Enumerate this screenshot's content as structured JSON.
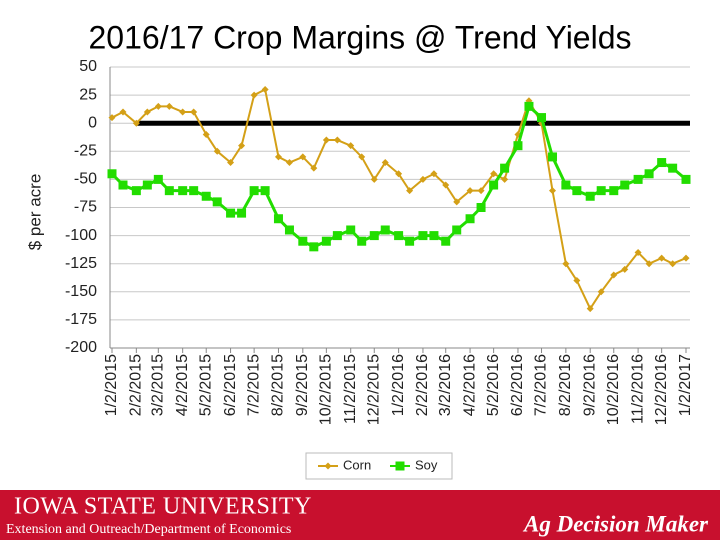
{
  "chart_data": {
    "type": "line",
    "title": "2016/17 Crop Margins @ Trend Yields",
    "y_label": "$ per acre",
    "x": [
      "1/2/2015",
      "1/16/2015",
      "2/2/2015",
      "2/16/2015",
      "3/2/2015",
      "3/16/2015",
      "4/2/2015",
      "4/16/2015",
      "5/2/2015",
      "5/16/2015",
      "6/2/2015",
      "6/16/2015",
      "7/2/2015",
      "7/16/2015",
      "8/2/2015",
      "8/16/2015",
      "9/2/2015",
      "9/16/2015",
      "10/2/2015",
      "10/16/2015",
      "11/2/2015",
      "11/16/2015",
      "12/2/2015",
      "12/16/2015",
      "1/2/2016",
      "1/16/2016",
      "2/2/2016",
      "2/16/2016",
      "3/2/2016",
      "3/16/2016",
      "4/2/2016",
      "4/16/2016",
      "5/2/2016",
      "5/16/2016",
      "6/2/2016",
      "6/16/2016",
      "7/2/2016",
      "7/16/2016",
      "8/2/2016",
      "8/16/2016",
      "9/2/2016",
      "9/16/2016",
      "10/2/2016",
      "10/16/2016",
      "11/2/2016",
      "11/16/2016",
      "12/2/2016",
      "12/16/2016",
      "1/2/2017"
    ],
    "series": [
      {
        "name": "Corn",
        "color": "#d4a017",
        "marker": "diamond",
        "values": [
          5,
          10,
          0,
          10,
          15,
          15,
          10,
          10,
          -10,
          -25,
          -35,
          -20,
          25,
          30,
          -30,
          -35,
          -30,
          -40,
          -15,
          -15,
          -20,
          -30,
          -50,
          -35,
          -45,
          -60,
          -50,
          -45,
          -55,
          -70,
          -60,
          -60,
          -45,
          -50,
          -10,
          20,
          0,
          -60,
          -125,
          -140,
          -165,
          -150,
          -135,
          -130,
          -115,
          -125,
          -120,
          -125,
          -120
        ]
      },
      {
        "name": "Soy",
        "color": "#22dd00",
        "marker": "square",
        "values": [
          -45,
          -55,
          -60,
          -55,
          -50,
          -60,
          -60,
          -60,
          -65,
          -70,
          -80,
          -80,
          -60,
          -60,
          -85,
          -95,
          -105,
          -110,
          -105,
          -100,
          -95,
          -105,
          -100,
          -95,
          -100,
          -105,
          -100,
          -100,
          -105,
          -95,
          -85,
          -75,
          -55,
          -40,
          -20,
          15,
          5,
          -30,
          -55,
          -60,
          -65,
          -60,
          -60,
          -55,
          -50,
          -45,
          -35,
          -40,
          -50
        ]
      }
    ],
    "ylim": [
      -200,
      50
    ],
    "yticks": [
      50,
      25,
      0,
      -25,
      -50,
      -75,
      -100,
      -125,
      -150,
      -175,
      -200
    ],
    "xlim": [
      "1/2/2015",
      "1/2/2017"
    ],
    "xticks": [
      "1/2/2015",
      "2/2/2015",
      "3/2/2015",
      "4/2/2015",
      "5/2/2015",
      "6/2/2015",
      "7/2/2015",
      "8/2/2015",
      "9/2/2015",
      "10/2/2015",
      "11/2/2015",
      "12/2/2015",
      "1/2/2016",
      "2/2/2016",
      "3/2/2016",
      "4/2/2016",
      "5/2/2016",
      "6/2/2016",
      "7/2/2016",
      "8/2/2016",
      "9/2/2016",
      "10/2/2016",
      "11/2/2016",
      "12/2/2016",
      "1/2/2017"
    ],
    "reference_y": 0,
    "grid": true,
    "legend": "bottom"
  },
  "footer": {
    "university": "Iowa State University",
    "unit": "Extension and Outreach/Department of Economics",
    "brand": "Ag Decision Maker"
  }
}
